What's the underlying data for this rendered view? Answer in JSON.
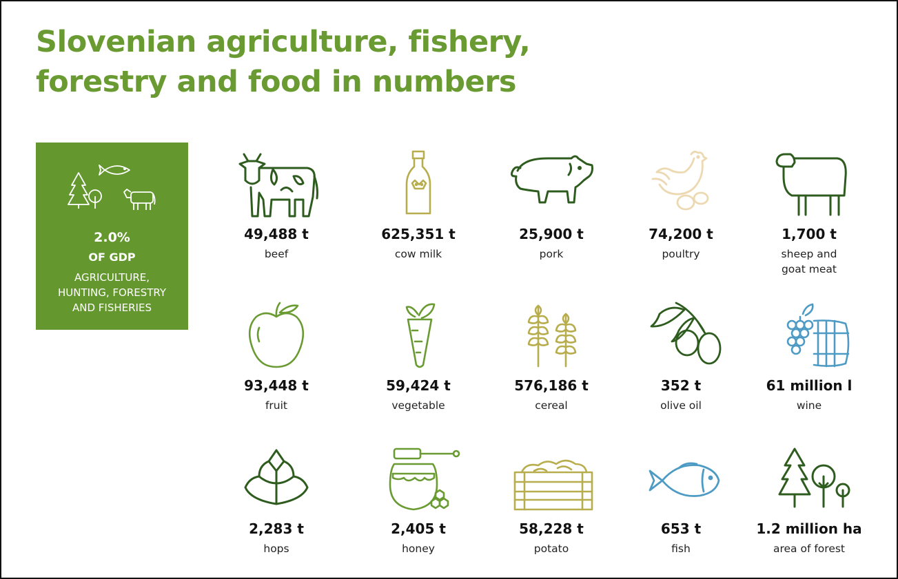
{
  "title": {
    "line1": "Slovenian agriculture, fishery,",
    "line2": "forestry and food in numbers"
  },
  "colors": {
    "title": "#6a9b32",
    "box": "#64982f",
    "dark_green": "#2e5c1f",
    "olive": "#b8ad4c",
    "cream": "#ecd9b1",
    "blue": "#4d9bc4"
  },
  "gdp": {
    "icons": [
      "tree-icon",
      "fish-icon",
      "cow-icon"
    ],
    "value": "2.0%",
    "label": "OF GDP",
    "description": "AGRICULTURE, HUNTING, FORESTRY AND FISHERIES"
  },
  "items": [
    {
      "icon": "cow-icon",
      "value": "49,488 t",
      "label": "beef"
    },
    {
      "icon": "milk-bottle-icon",
      "value": "625,351 t",
      "label": "cow milk"
    },
    {
      "icon": "pig-icon",
      "value": "25,900 t",
      "label": "pork"
    },
    {
      "icon": "hen-icon",
      "value": "74,200 t",
      "label": "poultry"
    },
    {
      "icon": "sheep-icon",
      "value": "1,700 t",
      "label": "sheep and goat meat"
    },
    {
      "icon": "apple-icon",
      "value": "93,448 t",
      "label": "fruit"
    },
    {
      "icon": "carrot-icon",
      "value": "59,424 t",
      "label": "vegetable"
    },
    {
      "icon": "wheat-icon",
      "value": "576,186 t",
      "label": "cereal"
    },
    {
      "icon": "olive-icon",
      "value": "352 t",
      "label": "olive oil"
    },
    {
      "icon": "grapes-barrel-icon",
      "value": "61 million l",
      "label": "wine"
    },
    {
      "icon": "hops-icon",
      "value": "2,283 t",
      "label": "hops"
    },
    {
      "icon": "honey-icon",
      "value": "2,405 t",
      "label": "honey"
    },
    {
      "icon": "potato-crate-icon",
      "value": "58,228 t",
      "label": "potato"
    },
    {
      "icon": "fish-icon",
      "value": "653 t",
      "label": "fish"
    },
    {
      "icon": "forest-icon",
      "value": "1.2 million ha",
      "label": "area of forest"
    }
  ]
}
